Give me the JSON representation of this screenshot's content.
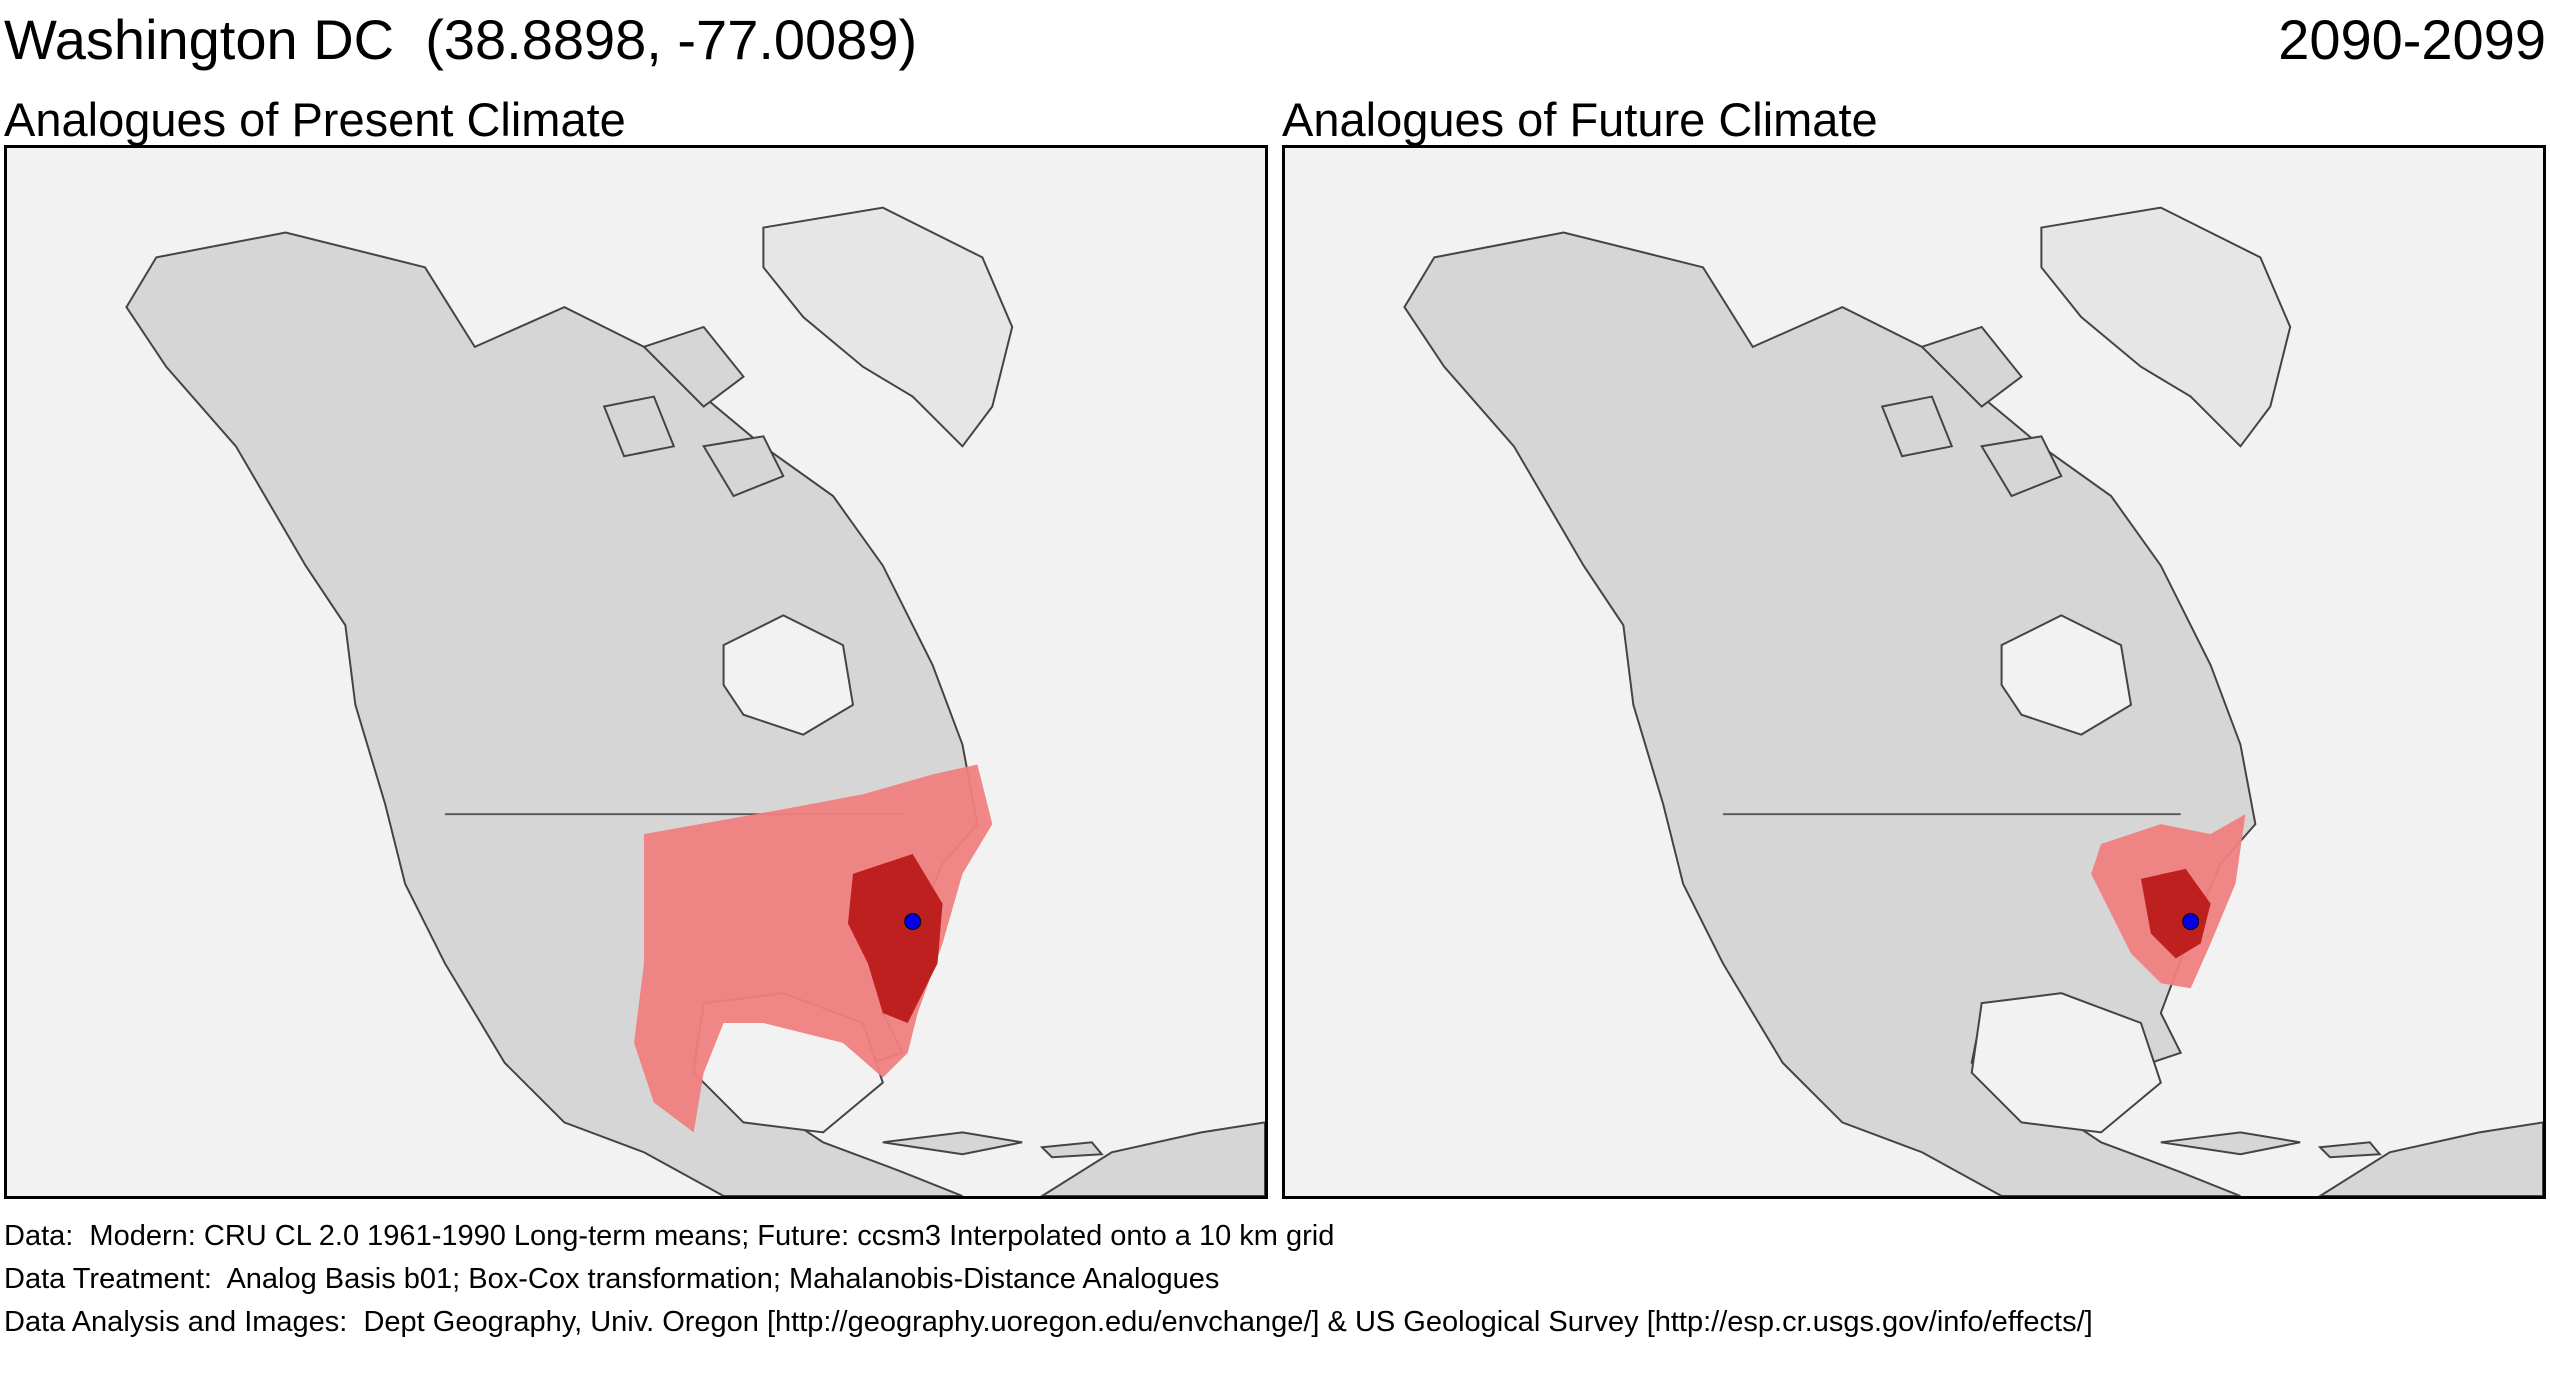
{
  "header": {
    "location_title": "Washington DC  (38.8898, -77.0089)",
    "period": "2090-2099"
  },
  "panels": [
    {
      "title": "Analogues of Present Climate",
      "analogue_extent": "broad: eastern and central US, southern Canada, Gulf coast to northern Mexico"
    },
    {
      "title": "Analogues of Future Climate",
      "analogue_extent": "narrow: Mid-Atlantic and lower Great Lakes region"
    }
  ],
  "map": {
    "region": "North America",
    "target_marker": {
      "label": "Washington DC",
      "lat": 38.8898,
      "lon": -77.0089,
      "color": "#0000ee"
    },
    "colors": {
      "ocean": "#f2f2f2",
      "land": "#d6d6d6",
      "analogue_light": "#ef8080",
      "analogue_dark": "#bb1a1a"
    }
  },
  "footer": {
    "data": "Data:  Modern: CRU CL 2.0 1961-1990 Long-term means; Future: ccsm3 Interpolated onto a 10 km grid",
    "treatment": "Data Treatment:  Analog Basis b01; Box-Cox transformation; Mahalanobis-Distance Analogues",
    "analysis": "Data Analysis and Images:  Dept Geography, Univ. Oregon [http://geography.uoregon.edu/envchange/] & US Geological Survey [http://esp.cr.usgs.gov/info/effects/]"
  }
}
